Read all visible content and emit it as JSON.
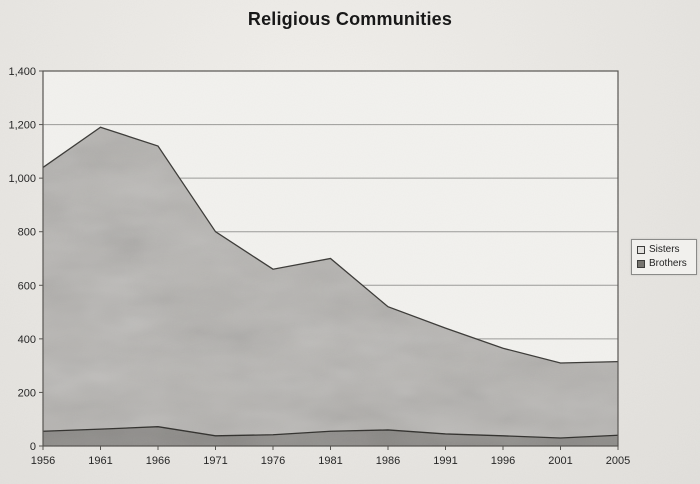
{
  "page": {
    "title": "Religious Communities"
  },
  "chart_data": {
    "type": "area",
    "title": "Religious Communities",
    "stacked": false,
    "categories": [
      "1956",
      "1961",
      "1966",
      "1971",
      "1976",
      "1981",
      "1986",
      "1991",
      "1996",
      "2001",
      "2005"
    ],
    "series": [
      {
        "name": "Sisters",
        "values": [
          1040,
          1190,
          1120,
          800,
          660,
          700,
          520,
          440,
          365,
          310,
          315
        ]
      },
      {
        "name": "Brothers",
        "values": [
          55,
          63,
          72,
          38,
          42,
          55,
          60,
          45,
          38,
          30,
          40
        ]
      }
    ],
    "xlabel": "",
    "ylabel": "",
    "ylim": [
      0,
      1400
    ],
    "y_tick_step": 200,
    "y_tick_labels": [
      "0",
      "200",
      "400",
      "600",
      "800",
      "1,000",
      "1,200",
      "1,400"
    ],
    "grid": true,
    "legend_position": "right"
  },
  "colors": {
    "page_bg": "#e8e6e2",
    "plot_bg": "#f2f1ee",
    "grid": "#9a9a97",
    "frame": "#55534f",
    "sisters_fill": "#b6b4b1",
    "sisters_line": "#3b3a37",
    "brothers_fill": "#8a8885",
    "brothers_line": "#32312e",
    "text": "#232323",
    "legend_swatch_sisters": "#e3e1de",
    "legend_swatch_brothers": "#76746f"
  }
}
